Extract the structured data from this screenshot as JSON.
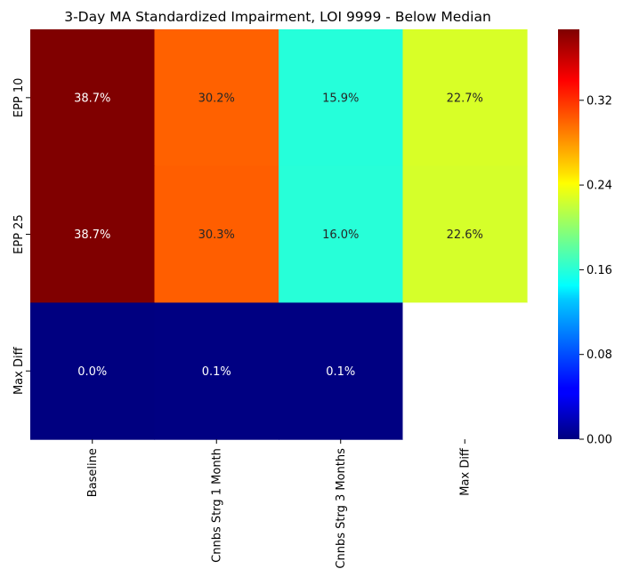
{
  "chart_data": {
    "type": "heatmap",
    "title": "3-Day MA Standardized Impairment, LOI 9999 - Below Median",
    "x_categories": [
      "Baseline",
      "Cnnbs Strg 1 Month",
      "Cnnbs Strg 3 Months",
      "Max Diff"
    ],
    "y_categories": [
      "EPP 10",
      "EPP 25",
      "Max Diff"
    ],
    "values": [
      [
        0.387,
        0.302,
        0.159,
        0.227
      ],
      [
        0.387,
        0.303,
        0.16,
        0.226
      ],
      [
        0.0,
        0.001,
        0.001,
        null
      ]
    ],
    "labels": [
      [
        "38.7%",
        "30.2%",
        "15.9%",
        "22.7%"
      ],
      [
        "38.7%",
        "30.3%",
        "16.0%",
        "22.6%"
      ],
      [
        "0.0%",
        "0.1%",
        "0.1%",
        ""
      ]
    ],
    "colormap": "jet",
    "vmin": 0.0,
    "vmax": 0.387,
    "colorbar_ticks": [
      "0.00",
      "0.08",
      "0.16",
      "0.24",
      "0.32"
    ],
    "colorbar_tick_values": [
      0.0,
      0.08,
      0.16,
      0.24,
      0.32
    ],
    "missing_cell_color": "#ffffff"
  }
}
